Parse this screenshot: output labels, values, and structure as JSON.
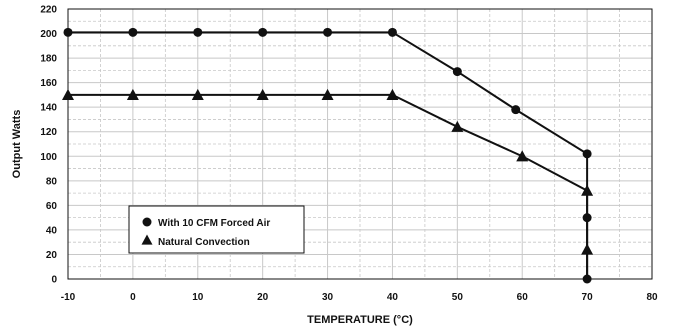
{
  "chart_data": {
    "type": "line",
    "title": "",
    "xlabel": "TEMPERATURE (°C)",
    "ylabel": "Output Watts",
    "xlim": [
      -10,
      80
    ],
    "ylim": [
      0,
      220
    ],
    "x_ticks": [
      -10,
      0,
      10,
      20,
      30,
      40,
      50,
      60,
      70,
      80
    ],
    "y_ticks": [
      0,
      20,
      40,
      60,
      80,
      100,
      120,
      140,
      160,
      180,
      200,
      220
    ],
    "grid": {
      "major": true,
      "minor_dashed": true
    },
    "legend_position": "bottom-left",
    "series": [
      {
        "name": "With 10 CFM Forced Air",
        "marker": "circle",
        "x": [
          -10,
          0,
          10,
          20,
          30,
          40,
          50,
          59,
          70,
          70,
          70,
          70
        ],
        "y": [
          201,
          201,
          201,
          201,
          201,
          201,
          169,
          138,
          102,
          72,
          50,
          0
        ],
        "marked": [
          true,
          true,
          true,
          true,
          true,
          true,
          true,
          true,
          true,
          false,
          true,
          true
        ]
      },
      {
        "name": "Natural Convection",
        "marker": "triangle",
        "x": [
          -10,
          0,
          10,
          20,
          30,
          40,
          50,
          60,
          70,
          70,
          70
        ],
        "y": [
          150,
          150,
          150,
          150,
          150,
          150,
          124,
          100,
          72,
          24,
          0
        ],
        "marked": [
          true,
          true,
          true,
          true,
          true,
          true,
          true,
          true,
          true,
          true,
          false
        ]
      }
    ],
    "colors": {
      "line": "#111111",
      "grid": "#c8c8c8",
      "frame": "#111111"
    }
  }
}
